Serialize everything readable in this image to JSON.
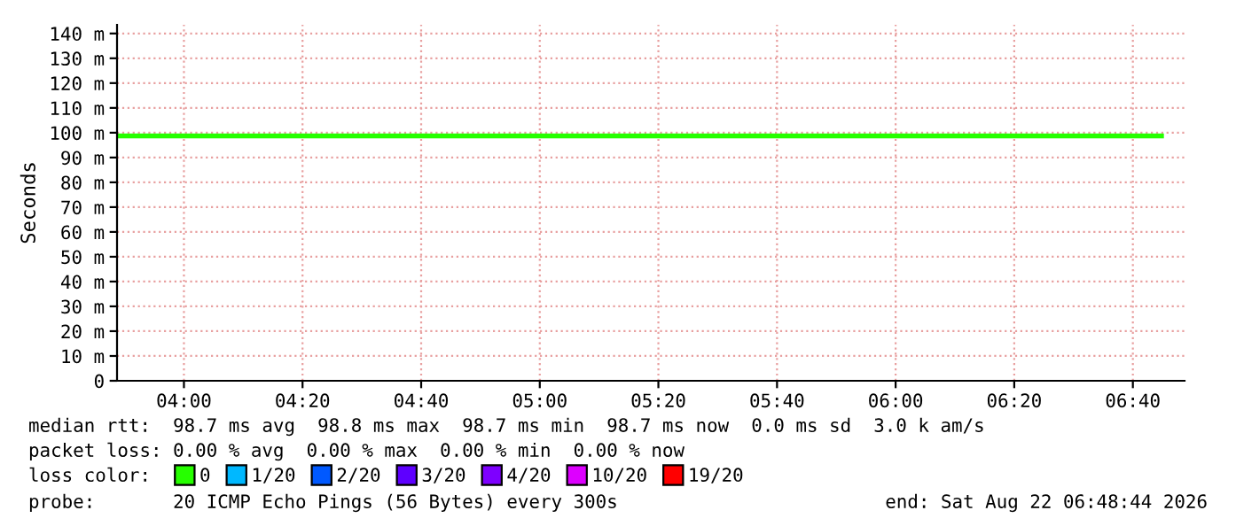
{
  "chart_data": {
    "type": "line",
    "ylabel": "Seconds",
    "legend_title": "loss color:",
    "legend": "bottom",
    "grid": true,
    "marker": "none",
    "line_style": "solid",
    "series": [
      {
        "name": "0",
        "color": "#26ff00",
        "x": [
          3.82,
          6.747
        ],
        "values": [
          98.7,
          98.7
        ]
      },
      {
        "name": "1/20",
        "color": "#00b8ff"
      },
      {
        "name": "2/20",
        "color": "#0059ff"
      },
      {
        "name": "3/20",
        "color": "#5e00ff"
      },
      {
        "name": "4/20",
        "color": "#7e00ff"
      },
      {
        "name": "10/20",
        "color": "#dd00ff"
      },
      {
        "name": "19/20",
        "color": "#ff0000"
      }
    ],
    "xlim": [
      3.812,
      6.812
    ],
    "xticks": [
      {
        "value": 4,
        "label": "04:00"
      },
      {
        "value": 4.3333,
        "label": "04:20"
      },
      {
        "value": 4.6667,
        "label": "04:40"
      },
      {
        "value": 5,
        "label": "05:00"
      },
      {
        "value": 5.3333,
        "label": "05:20"
      },
      {
        "value": 5.6667,
        "label": "05:40"
      },
      {
        "value": 6,
        "label": "06:00"
      },
      {
        "value": 6.3333,
        "label": "06:20"
      },
      {
        "value": 6.6667,
        "label": "06:40"
      }
    ],
    "ylim": [
      0,
      143.5
    ],
    "yticks": [
      0,
      {
        "value": 10,
        "label": "10 m"
      },
      {
        "value": 20,
        "label": "20 m"
      },
      {
        "value": 30,
        "label": "30 m"
      },
      {
        "value": 40,
        "label": "40 m"
      },
      {
        "value": 50,
        "label": "50 m"
      },
      {
        "value": 60,
        "label": "60 m"
      },
      {
        "value": 70,
        "label": "70 m"
      },
      {
        "value": 80,
        "label": "80 m"
      },
      {
        "value": 90,
        "label": "90 m"
      },
      {
        "value": 100,
        "label": "100 m"
      },
      {
        "value": 110,
        "label": "110 m"
      },
      {
        "value": 120,
        "label": "120 m"
      },
      {
        "value": 130,
        "label": "130 m"
      },
      {
        "value": 140,
        "label": "140 m"
      }
    ],
    "annotations": [
      "median rtt:  98.7 ms avg  98.8 ms max  98.7 ms min  98.7 ms now  0.0 ms sd  3.0 k am/s",
      "packet loss: 0.00 % avg  0.00 % max  0.00 % min  0.00 % now",
      "probe:       20 ICMP Echo Pings (56 Bytes) every 300s",
      "end: Sat Aug 22 06:48:44 2026"
    ]
  }
}
